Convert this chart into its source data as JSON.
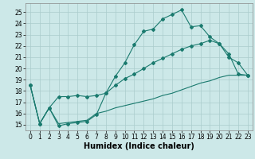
{
  "xlabel": "Humidex (Indice chaleur)",
  "xlim": [
    -0.5,
    23.5
  ],
  "ylim": [
    14.5,
    25.8
  ],
  "xticks": [
    0,
    1,
    2,
    3,
    4,
    5,
    6,
    7,
    8,
    9,
    10,
    11,
    12,
    13,
    14,
    15,
    16,
    17,
    18,
    19,
    20,
    21,
    22,
    23
  ],
  "yticks": [
    15,
    16,
    17,
    18,
    19,
    20,
    21,
    22,
    23,
    24,
    25
  ],
  "bg_color": "#cce8e8",
  "line_color": "#1a7a6e",
  "grid_color": "#aacccc",
  "line1_x": [
    0,
    1,
    2,
    3,
    4,
    5,
    6,
    7,
    8,
    9,
    10,
    11,
    12,
    13,
    14,
    15,
    16,
    17,
    18,
    19,
    20,
    21,
    22,
    23
  ],
  "line1_y": [
    18.5,
    15.1,
    16.5,
    14.9,
    15.1,
    15.2,
    15.3,
    15.9,
    17.8,
    19.3,
    20.5,
    22.1,
    23.3,
    23.5,
    24.4,
    24.8,
    25.2,
    23.7,
    23.8,
    22.8,
    22.2,
    21.0,
    20.5,
    19.4
  ],
  "line2_x": [
    0,
    1,
    2,
    3,
    4,
    5,
    6,
    7,
    8,
    9,
    10,
    11,
    12,
    13,
    14,
    15,
    16,
    17,
    18,
    19,
    20,
    21,
    22,
    23
  ],
  "line2_y": [
    18.5,
    15.1,
    16.5,
    17.5,
    17.5,
    17.6,
    17.5,
    17.6,
    17.8,
    18.5,
    19.1,
    19.5,
    20.0,
    20.5,
    20.9,
    21.3,
    21.7,
    22.0,
    22.2,
    22.5,
    22.2,
    21.3,
    19.5,
    19.4
  ],
  "line3_x": [
    0,
    1,
    2,
    3,
    4,
    5,
    6,
    7,
    8,
    9,
    10,
    11,
    12,
    13,
    14,
    15,
    16,
    17,
    18,
    19,
    20,
    21,
    22,
    23
  ],
  "line3_y": [
    18.5,
    15.1,
    16.5,
    15.1,
    15.2,
    15.3,
    15.4,
    16.0,
    16.2,
    16.5,
    16.7,
    16.9,
    17.1,
    17.3,
    17.6,
    17.8,
    18.1,
    18.4,
    18.7,
    18.9,
    19.2,
    19.4,
    19.4,
    19.4
  ],
  "tick_fontsize": 5.5,
  "label_fontsize": 7.0
}
